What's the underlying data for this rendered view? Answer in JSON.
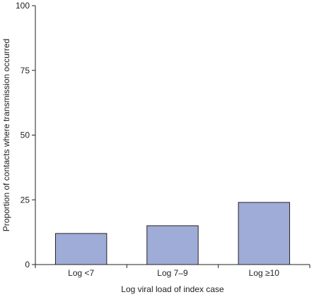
{
  "chart_data": {
    "type": "bar",
    "categories": [
      "Log <7",
      "Log 7–9",
      "Log ≥10"
    ],
    "values": [
      12,
      15,
      24
    ],
    "xlabel": "Log viral load of index case",
    "ylabel": "Proportion of contacts where transmission occurred",
    "ylim": [
      0,
      100
    ],
    "yticks": [
      0,
      25,
      50,
      75,
      100
    ],
    "grid": false,
    "legend": "none",
    "bar_color": "#9facd8"
  }
}
